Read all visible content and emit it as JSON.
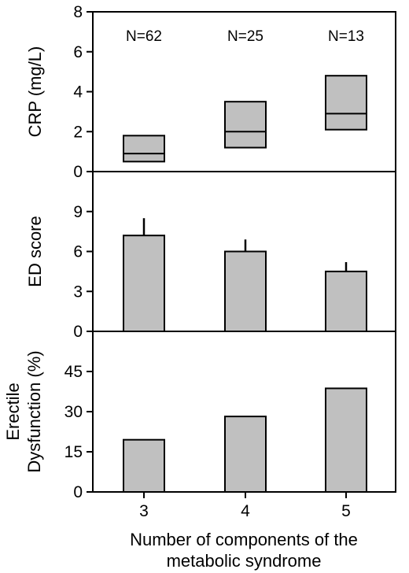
{
  "chart_data": [
    {
      "type": "box",
      "title": "",
      "ylabel": "CRP (mg/L)",
      "ylim": [
        0,
        8
      ],
      "yticks": [
        0,
        2,
        4,
        6,
        8
      ],
      "categories": [
        "3",
        "4",
        "5"
      ],
      "boxes": [
        {
          "low": 0.5,
          "median": 0.9,
          "high": 1.8
        },
        {
          "low": 1.2,
          "median": 2.0,
          "high": 3.5
        },
        {
          "low": 2.1,
          "median": 2.9,
          "high": 4.8
        }
      ],
      "annotations": [
        "N=62",
        "N=25",
        "N=13"
      ],
      "grid": false
    },
    {
      "type": "bar",
      "title": "",
      "ylabel": "ED score",
      "ylim": [
        0,
        12
      ],
      "yticks": [
        0,
        3,
        6,
        9
      ],
      "categories": [
        "3",
        "4",
        "5"
      ],
      "values": [
        7.2,
        6.0,
        4.5
      ],
      "error_upper": [
        8.5,
        6.9,
        5.2
      ],
      "grid": false
    },
    {
      "type": "bar",
      "title": "",
      "ylabel": [
        "Erectile",
        "Dysfunction (%)"
      ],
      "ylim": [
        0,
        60
      ],
      "yticks": [
        0,
        15,
        30,
        45
      ],
      "categories": [
        "3",
        "4",
        "5"
      ],
      "values": [
        19.5,
        28.2,
        38.7
      ],
      "grid": false
    }
  ],
  "xlabel": [
    "Number of components of the",
    "metabolic syndrome"
  ],
  "x_ticks": [
    "3",
    "4",
    "5"
  ],
  "colors": {
    "fill": "#c0c0c0",
    "stroke": "#000000"
  }
}
